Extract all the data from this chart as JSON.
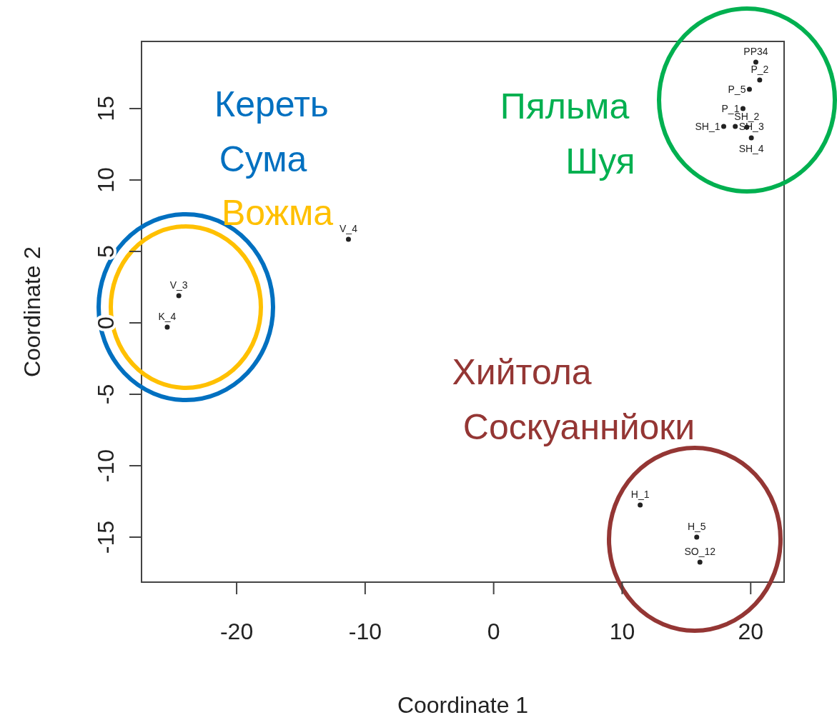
{
  "chart_data": {
    "type": "scatter",
    "xlabel": "Coordinate 1",
    "ylabel": "Coordinate 2",
    "xlim": [
      -27.4,
      22.6
    ],
    "ylim": [
      -18.15,
      19.7
    ],
    "xticks": [
      -20,
      -10,
      0,
      10,
      20
    ],
    "yticks": [
      -15,
      -10,
      -5,
      0,
      5,
      10,
      15
    ],
    "marker": "circle",
    "series": [
      {
        "color": "#222222",
        "x": [
          -24.5,
          -25.4,
          -11.3,
          20.4,
          20.7,
          19.9,
          19.4,
          17.9,
          18.8,
          19.7,
          20.05,
          11.4,
          15.8,
          16.05
        ],
        "values": [
          1.9,
          -0.3,
          5.85,
          18.25,
          17.0,
          16.35,
          15.0,
          13.75,
          13.75,
          13.7,
          12.95,
          -12.75,
          -15.0,
          -16.75
        ]
      }
    ],
    "annotations": [
      "Кереть",
      "Сума",
      "Вожма",
      "Пяльма",
      "Шуя",
      "Хийтола",
      "Соскуаннйоки",
      {
        "text": "V_3",
        "x": -24.5,
        "y": 1.9
      },
      {
        "text": "K_4",
        "x": -25.4,
        "y": -0.3
      },
      {
        "text": "V_4",
        "x": -11.3,
        "y": 5.85
      },
      {
        "text": "PP34",
        "x": 20.4,
        "y": 18.25
      },
      {
        "text": "P_2",
        "x": 20.7,
        "y": 17.0
      },
      {
        "text": "P_5",
        "x": 19.9,
        "y": 16.35
      },
      {
        "text": "P_1",
        "x": 19.4,
        "y": 15.0
      },
      {
        "text": "SH_1",
        "x": 17.9,
        "y": 13.75
      },
      {
        "text": "SH_3",
        "x": 18.8,
        "y": 13.75
      },
      {
        "text": "SH_2",
        "x": 19.7,
        "y": 13.7
      },
      {
        "text": "SH_4",
        "x": 20.05,
        "y": 12.95
      },
      {
        "text": "H_1",
        "x": 11.4,
        "y": -12.75
      },
      {
        "text": "H_5",
        "x": 15.8,
        "y": -15.0
      },
      {
        "text": "SO_12",
        "x": 16.05,
        "y": -16.75
      }
    ]
  }
}
